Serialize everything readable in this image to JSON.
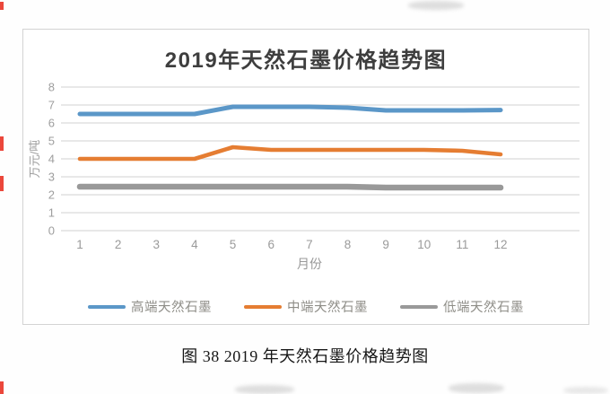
{
  "figure": {
    "caption": "图 38 2019 年天然石墨价格趋势图"
  },
  "chart_data": {
    "type": "line",
    "title": "2019年天然石墨价格趋势图",
    "xlabel": "月份",
    "ylabel": "万元/吨",
    "categories": [
      1,
      2,
      3,
      4,
      5,
      6,
      7,
      8,
      9,
      10,
      11,
      12
    ],
    "y_ticks": [
      0,
      1,
      2,
      3,
      4,
      5,
      6,
      7,
      8
    ],
    "ylim": [
      0,
      8
    ],
    "grid": true,
    "legend_position": "bottom",
    "gridline_color": "#d9d9d9",
    "tick_label_color": "#8d8d8d",
    "series": [
      {
        "name": "高端天然石墨",
        "color": "#5b97c8",
        "values": [
          6.5,
          6.5,
          6.5,
          6.5,
          6.9,
          6.9,
          6.9,
          6.85,
          6.7,
          6.7,
          6.7,
          6.72
        ]
      },
      {
        "name": "中端天然石墨",
        "color": "#e57d32",
        "values": [
          4.0,
          4.0,
          4.0,
          4.0,
          4.65,
          4.5,
          4.5,
          4.5,
          4.5,
          4.5,
          4.45,
          4.25
        ]
      },
      {
        "name": "低端天然石墨",
        "color": "#999999",
        "values": [
          2.45,
          2.45,
          2.45,
          2.45,
          2.45,
          2.45,
          2.45,
          2.45,
          2.4,
          2.4,
          2.4,
          2.4
        ]
      }
    ]
  }
}
